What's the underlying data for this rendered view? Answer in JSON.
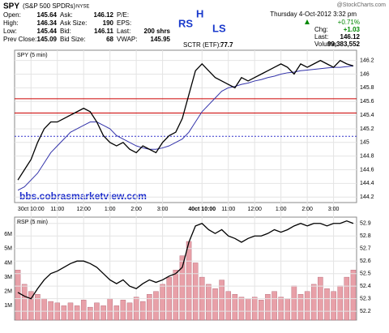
{
  "quote": {
    "symbol": "SPY",
    "name": "(S&P 500 SPDRs)",
    "exchange": "NYSE",
    "source": "@StockCharts.com",
    "date": "Thursday  4-Oct-2012  3:32 pm",
    "fields": [
      [
        "Open:",
        145.64
      ],
      [
        "High:",
        146.34
      ],
      [
        "Low:",
        145.44
      ],
      [
        "Prev Close:",
        145.09
      ],
      [
        "Ask:",
        146.12
      ],
      [
        "Ask Size:",
        190
      ],
      [
        "Bid:",
        146.11
      ],
      [
        "Bid Size:",
        68
      ],
      [
        "P/E:",
        null
      ],
      [
        "EPS:",
        null
      ],
      [
        "Last:",
        "200 shrs"
      ],
      [
        "VWAP:",
        145.95
      ]
    ],
    "sctr_label": "SCTR (ETF):",
    "sctr": 77.7,
    "chg_pct": "+0.71%",
    "chg_label": "Chg:",
    "chg": "+1.03",
    "last_label": "Last:",
    "last": 146.12,
    "volume_label": "Volume:",
    "volume": "99,383,552"
  },
  "annotations": {
    "rs": "RS",
    "h": "H",
    "ls": "LS",
    "site": "bbs.cobrasmarketview.com"
  },
  "chart_data": [
    {
      "type": "line",
      "label": "SPY (5 min)",
      "ylim": [
        144.12,
        146.35
      ],
      "yticks": [
        144.2,
        144.4,
        144.6,
        144.8,
        145.0,
        145.2,
        145.4,
        145.6,
        145.8,
        146.0,
        146.2
      ],
      "categories": [
        null,
        null,
        "30ct 10:00",
        null,
        null,
        null,
        "11:00",
        null,
        null,
        null,
        "12:00",
        null,
        null,
        null,
        "1:00",
        null,
        null,
        null,
        "2:00",
        null,
        null,
        null,
        "3:00",
        null,
        null,
        null,
        null,
        null,
        "40ct 10:00",
        null,
        null,
        null,
        "11:00",
        null,
        null,
        null,
        "12:00",
        null,
        null,
        null,
        "1:00",
        null,
        null,
        null,
        "2:00",
        null,
        null,
        null,
        "3:00",
        null,
        null,
        null
      ],
      "levels": [
        {
          "value": 145.64,
          "color": "#cc0000"
        },
        {
          "value": 145.43,
          "color": "#cc0000"
        },
        {
          "value": 145.09,
          "color": "#3333cc"
        }
      ],
      "series": [
        {
          "color": "#000000",
          "values": [
            144.45,
            144.6,
            144.75,
            145.0,
            145.2,
            145.3,
            145.3,
            145.35,
            145.4,
            145.45,
            145.5,
            145.45,
            145.3,
            145.1,
            145.0,
            144.95,
            145.0,
            144.9,
            144.85,
            144.95,
            144.9,
            144.85,
            145.0,
            145.1,
            145.15,
            145.35,
            145.7,
            146.05,
            146.15,
            146.05,
            145.95,
            145.9,
            145.85,
            145.8,
            145.95,
            145.9,
            145.95,
            146.0,
            146.05,
            146.1,
            146.15,
            146.1,
            146.0,
            146.15,
            146.1,
            146.15,
            146.2,
            146.15,
            146.1,
            146.2,
            146.15,
            146.12
          ]
        },
        {
          "color": "#3333aa",
          "values": [
            144.3,
            144.35,
            144.45,
            144.55,
            144.7,
            144.85,
            144.95,
            145.05,
            145.15,
            145.2,
            145.25,
            145.3,
            145.3,
            145.25,
            145.2,
            145.1,
            145.05,
            145.0,
            144.95,
            144.92,
            144.9,
            144.9,
            144.92,
            144.95,
            145.0,
            145.05,
            145.15,
            145.3,
            145.45,
            145.55,
            145.65,
            145.75,
            145.8,
            145.82,
            145.85,
            145.87,
            145.9,
            145.92,
            145.95,
            145.97,
            146.0,
            146.02,
            146.03,
            146.05,
            146.06,
            146.07,
            146.08,
            146.09,
            146.1,
            146.1,
            146.11,
            146.12
          ]
        }
      ]
    },
    {
      "type": "line",
      "label": "RSP (5 min)",
      "ylim": [
        52.13,
        52.95
      ],
      "yticks": [
        52.2,
        52.3,
        52.4,
        52.5,
        52.6,
        52.7,
        52.8,
        52.9
      ],
      "volume": {
        "color": "#e8a0a8",
        "ylim": [
          0,
          7.2
        ],
        "yticks": [
          {
            "value": 1,
            "label": "1M"
          },
          {
            "value": 2,
            "label": "2M"
          },
          {
            "value": 3,
            "label": "3M"
          },
          {
            "value": 4,
            "label": "4M"
          },
          {
            "value": 5,
            "label": "5M"
          },
          {
            "value": 6,
            "label": "6M"
          }
        ],
        "values": [
          3.5,
          2.5,
          2.0,
          1.8,
          1.5,
          1.3,
          1.2,
          1.0,
          1.2,
          1.0,
          1.4,
          0.9,
          1.2,
          1.0,
          1.5,
          1.0,
          1.4,
          1.2,
          1.6,
          1.3,
          1.8,
          2.0,
          2.5,
          3.0,
          3.5,
          4.5,
          5.5,
          4.0,
          3.0,
          2.5,
          2.2,
          2.8,
          2.0,
          1.8,
          1.6,
          1.5,
          1.6,
          1.4,
          1.8,
          2.0,
          1.6,
          1.5,
          2.4,
          1.8,
          2.0,
          2.5,
          3.0,
          2.2,
          2.0,
          2.4,
          3.0,
          3.5
        ]
      },
      "series": [
        {
          "color": "#000000",
          "values": [
            52.35,
            52.32,
            52.3,
            52.38,
            52.45,
            52.5,
            52.52,
            52.55,
            52.58,
            52.6,
            52.6,
            52.58,
            52.55,
            52.5,
            52.45,
            52.42,
            52.45,
            52.4,
            52.38,
            52.42,
            52.45,
            52.43,
            52.45,
            52.48,
            52.5,
            52.55,
            52.75,
            52.88,
            52.9,
            52.85,
            52.82,
            52.85,
            52.8,
            52.78,
            52.75,
            52.78,
            52.8,
            52.8,
            52.82,
            52.85,
            52.83,
            52.85,
            52.88,
            52.9,
            52.88,
            52.9,
            52.9,
            52.88,
            52.9,
            52.9,
            52.92,
            52.9
          ]
        }
      ]
    }
  ]
}
